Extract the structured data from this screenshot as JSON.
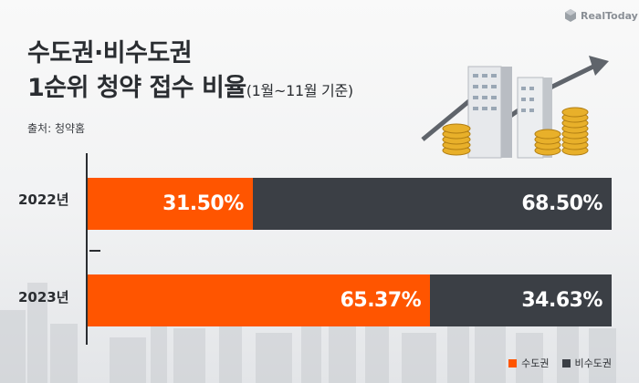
{
  "title_line1": "수도권·비수도권",
  "title_line2": "1순위 청약 접수 비율",
  "title_sub": "(1월~11월 기준)",
  "source": "출처: 청약홈",
  "logo_text": "RealToday",
  "colors": {
    "capital": "#ff5500",
    "non_capital": "#3b3f45"
  },
  "chart_data": {
    "type": "bar",
    "orientation": "horizontal",
    "stacked": true,
    "normalized_percent": true,
    "categories": [
      "2022년",
      "2023년"
    ],
    "series": [
      {
        "name": "수도권",
        "values": [
          31.5,
          65.37
        ],
        "labels": [
          "31.50%",
          "65.37%"
        ],
        "color": "#ff5500"
      },
      {
        "name": "비수도권",
        "values": [
          68.5,
          34.63
        ],
        "labels": [
          "68.50%",
          "34.63%"
        ],
        "color": "#3b3f45"
      }
    ],
    "xlim": [
      0,
      100
    ],
    "legend_position": "bottom-right",
    "grid": false
  }
}
